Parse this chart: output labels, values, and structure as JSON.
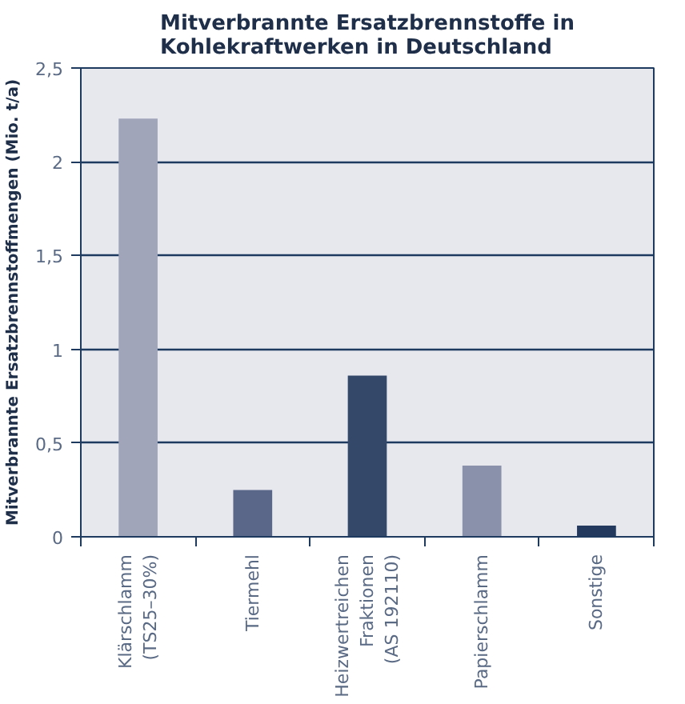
{
  "chart_data": {
    "type": "bar",
    "title": "Mitverbrannte Ersatzbrennstoffe in\nKohlekraftwerken in Deutschland",
    "ylabel": "Mitverbrannte Ersatzbrennstoffmengen (Mio. t/a)",
    "categories": [
      "Klärschlamm\n(TS25–30%)",
      "Tiermehl",
      "Heizwertreichen\nFraktionen\n(AS 192110)",
      "Papierschlamm",
      "Sonstige"
    ],
    "values": [
      2.23,
      0.25,
      0.86,
      0.38,
      0.06
    ],
    "colors": [
      "#a0a5ba",
      "#5a6789",
      "#34486a",
      "#8a91aa",
      "#233a5e"
    ],
    "ylim": [
      0,
      2.5
    ],
    "yticks": [
      0,
      {
        "value": 0.5,
        "label": "0,5"
      },
      1,
      {
        "value": 1.5,
        "label": "1,5"
      },
      2,
      {
        "value": 2.5,
        "label": "2,5"
      }
    ],
    "grid": "y"
  }
}
